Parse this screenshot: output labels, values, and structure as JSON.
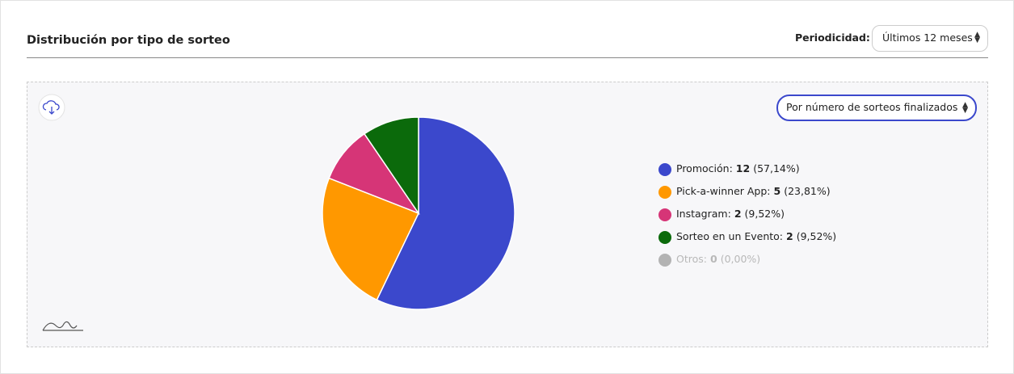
{
  "header": {
    "title": "Distribución por tipo de sorteo",
    "period_label": "Periodicidad:",
    "period_value": "Últimos 12 meses"
  },
  "metric_select": "Por número de sorteos finalizados",
  "chart_data": {
    "type": "pie",
    "categories": [
      "Promoción:",
      "Pick-a-winner App:",
      "Instagram:",
      "Sorteo en un Evento:",
      "Otros:"
    ],
    "values": [
      12,
      5,
      2,
      2,
      0
    ],
    "percentages": [
      {
        "value": 57.14,
        "label": "(57,14%)"
      },
      {
        "value": 23.81,
        "label": "(23,81%)"
      },
      {
        "value": 9.52,
        "label": "(9,52%)"
      },
      {
        "value": 9.52,
        "label": "(9,52%)"
      },
      {
        "value": 0,
        "label": "(0,00%)"
      }
    ],
    "colors": [
      "#3b48cc",
      "#ff9800",
      "#d63577",
      "#0b6a0b",
      "#b3b3b3"
    ],
    "hidden": [
      false,
      false,
      false,
      false,
      true
    ]
  }
}
